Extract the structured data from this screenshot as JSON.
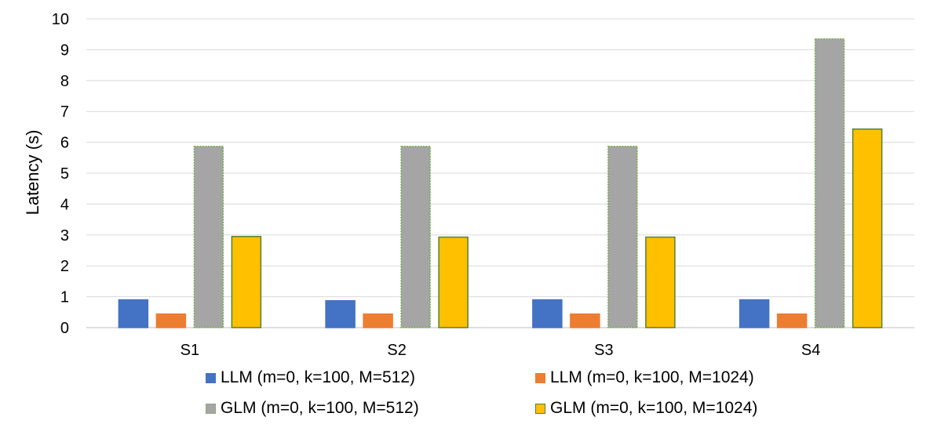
{
  "chart_data": {
    "type": "bar",
    "title": "",
    "xlabel": "",
    "ylabel": "Latency (s)",
    "ylim": [
      0,
      10
    ],
    "yticks": [
      "0",
      "1",
      "2",
      "3",
      "4",
      "5",
      "6",
      "7",
      "8",
      "9",
      "10"
    ],
    "grid": true,
    "legend_position": "bottom",
    "categories": [
      "S1",
      "S2",
      "S3",
      "S4"
    ],
    "series": [
      {
        "name": "LLM (m=0, k=100, M=512)",
        "color": "#4472C4",
        "border": "#4472C4",
        "values": [
          0.9,
          0.87,
          0.9,
          0.9
        ]
      },
      {
        "name": "LLM (m=0, k=100, M=1024)",
        "color": "#ED7D31",
        "border": "#ED7D31",
        "values": [
          0.44,
          0.44,
          0.44,
          0.44
        ]
      },
      {
        "name": "GLM (m=0, k=100, M=512)",
        "color": "#A5A5A5",
        "border": "#70AD47",
        "values": [
          5.87,
          5.87,
          5.87,
          9.35
        ]
      },
      {
        "name": "GLM (m=0, k=100, M=1024)",
        "color": "#FFC000",
        "border": "#538135",
        "values": [
          2.95,
          2.93,
          2.93,
          6.43
        ]
      }
    ]
  }
}
